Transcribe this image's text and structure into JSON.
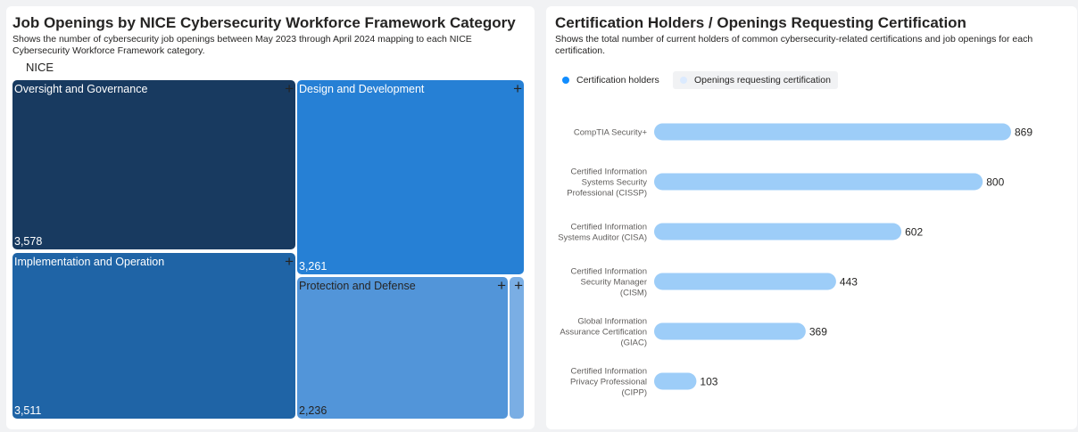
{
  "left": {
    "title": "Job Openings by NICE Cybersecurity Workforce Framework Category",
    "subtitle_line1": "Shows the number of cybersecurity job openings between May 2023 through April 2024 mapping to each NICE",
    "subtitle_line2": "Cybersecurity Workforce Framework category.",
    "treemap_group_label": "NICE",
    "plus_symbol": "+"
  },
  "right": {
    "title": "Certification Holders / Openings Requesting Certification",
    "subtitle_line1": "Shows the total number of current holders of common cybersecurity-related certifications and job openings for each",
    "subtitle_line2": "certification.",
    "legend": [
      {
        "label": "Certification holders",
        "color": "#118dff"
      },
      {
        "label": "Openings requesting certification",
        "color": "#dbeafe"
      }
    ]
  },
  "chart_data": [
    {
      "type": "treemap",
      "title": "Job Openings by NICE Cybersecurity Workforce Framework Category",
      "group": "NICE",
      "categories": [
        "Oversight and Governance",
        "Design and Development",
        "Implementation and Operation",
        "Protection and Defense",
        ""
      ],
      "values": [
        3578,
        3261,
        3511,
        2236,
        null
      ],
      "value_labels": [
        "3,578",
        "3,261",
        "3,511",
        "2,236",
        ""
      ],
      "colors": [
        "#183a60",
        "#2680d5",
        "#1f64a6",
        "#5295d9",
        "#7aaee4"
      ]
    },
    {
      "type": "bar",
      "orientation": "horizontal",
      "title": "Certification Holders / Openings Requesting Certification",
      "categories": [
        [
          "CompTIA Security+"
        ],
        [
          "Certified Information",
          "Systems Security",
          "Professional (CISSP)"
        ],
        [
          "Certified Information",
          "Systems Auditor (CISA)"
        ],
        [
          "Certified Information",
          "Security Manager",
          "(CISM)"
        ],
        [
          "Global Information",
          "Assurance Certification",
          "(GIAC)"
        ],
        [
          "Certified Information",
          "Privacy Professional",
          "(CIPP)"
        ]
      ],
      "series": [
        {
          "name": "Openings requesting certification",
          "values": [
            869,
            800,
            602,
            443,
            369,
            103
          ],
          "color": "#9dcdf8"
        }
      ],
      "xlim": [
        0,
        869
      ],
      "grid": false,
      "legend_position": "top-left"
    }
  ]
}
